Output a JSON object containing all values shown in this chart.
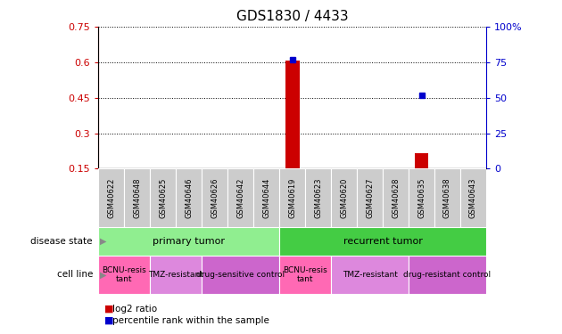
{
  "title": "GDS1830 / 4433",
  "samples": [
    "GSM40622",
    "GSM40648",
    "GSM40625",
    "GSM40646",
    "GSM40626",
    "GSM40642",
    "GSM40644",
    "GSM40619",
    "GSM40623",
    "GSM40620",
    "GSM40627",
    "GSM40628",
    "GSM40635",
    "GSM40638",
    "GSM40643"
  ],
  "log2_ratio": [
    null,
    null,
    null,
    null,
    null,
    null,
    null,
    0.607,
    null,
    null,
    null,
    null,
    0.215,
    null,
    null
  ],
  "percentile_rank": [
    null,
    null,
    null,
    null,
    null,
    null,
    null,
    77.0,
    null,
    null,
    null,
    null,
    52.0,
    null,
    null
  ],
  "ylim_left": [
    0.15,
    0.75
  ],
  "ylim_right": [
    0,
    100
  ],
  "yticks_left": [
    0.15,
    0.3,
    0.45,
    0.6,
    0.75
  ],
  "yticks_right": [
    0,
    25,
    50,
    75,
    100
  ],
  "ytick_labels_left": [
    "0.15",
    "0.3",
    "0.45",
    "0.6",
    "0.75"
  ],
  "ytick_labels_right": [
    "0",
    "25",
    "50",
    "75",
    "100%"
  ],
  "disease_state_groups": [
    {
      "label": "primary tumor",
      "start": 0,
      "end": 7,
      "color": "#90EE90"
    },
    {
      "label": "recurrent tumor",
      "start": 7,
      "end": 15,
      "color": "#44CC44"
    }
  ],
  "cell_line_groups": [
    {
      "label": "BCNU-resis\ntant",
      "start": 0,
      "end": 2,
      "color": "#FF69B4"
    },
    {
      "label": "TMZ-resistant",
      "start": 2,
      "end": 4,
      "color": "#DD88DD"
    },
    {
      "label": "drug-sensitive control",
      "start": 4,
      "end": 7,
      "color": "#CC66CC"
    },
    {
      "label": "BCNU-resis\ntant",
      "start": 7,
      "end": 9,
      "color": "#FF69B4"
    },
    {
      "label": "TMZ-resistant",
      "start": 9,
      "end": 12,
      "color": "#DD88DD"
    },
    {
      "label": "drug-resistant control",
      "start": 12,
      "end": 15,
      "color": "#CC66CC"
    }
  ],
  "bar_color": "#CC0000",
  "dot_color": "#0000CC",
  "grid_color": "#000000",
  "background_color": "#FFFFFF",
  "left_axis_color": "#CC0000",
  "right_axis_color": "#0000CC",
  "sample_box_color": "#CCCCCC",
  "title_fontsize": 11,
  "tick_fontsize": 8,
  "label_fontsize": 8
}
